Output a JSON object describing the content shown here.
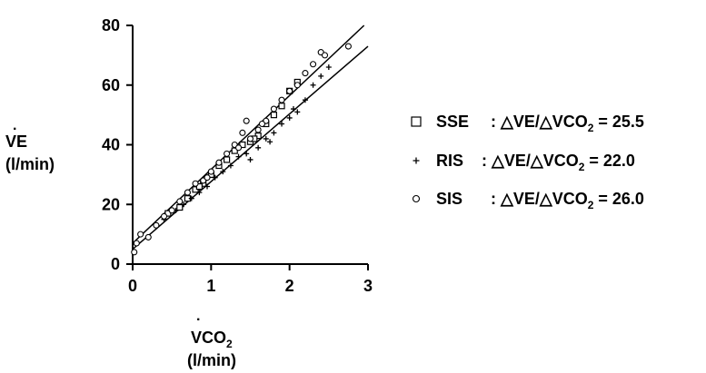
{
  "chart_data": {
    "type": "scatter",
    "x": [
      0,
      3
    ],
    "xlim": [
      0,
      3
    ],
    "ylim": [
      0,
      80
    ],
    "xticks": [
      "0",
      "1",
      "2",
      "3"
    ],
    "yticks": [
      "0",
      "20",
      "40",
      "60",
      "80"
    ],
    "xlabel": {
      "main": "VCO",
      "sub": "2",
      "unit": "(l/min)"
    },
    "ylabel": {
      "main": "VE",
      "unit": "(l/min)"
    },
    "grid": false,
    "legend_position": "right",
    "series": [
      {
        "name": "SSE",
        "marker": "square",
        "ratio_label": ": △VE/△VCO",
        "ratio_sub": "2",
        "ratio_value": "= 25.5",
        "points": [
          [
            0.45,
            17
          ],
          [
            0.6,
            19
          ],
          [
            0.7,
            22
          ],
          [
            0.8,
            25
          ],
          [
            0.9,
            27
          ],
          [
            1.0,
            30
          ],
          [
            1.1,
            33
          ],
          [
            1.2,
            35
          ],
          [
            1.3,
            38
          ],
          [
            1.4,
            40
          ],
          [
            1.5,
            41
          ],
          [
            1.6,
            43
          ],
          [
            1.7,
            47
          ],
          [
            1.8,
            50
          ],
          [
            1.9,
            53
          ],
          [
            2.0,
            58
          ],
          [
            2.1,
            61
          ],
          [
            0.85,
            26
          ],
          [
            1.55,
            42
          ]
        ]
      },
      {
        "name": "RIS",
        "marker": "plus",
        "ratio_label": ": △VE/△VCO",
        "ratio_sub": "2",
        "ratio_value": "= 22.0",
        "points": [
          [
            0.4,
            15
          ],
          [
            0.55,
            18
          ],
          [
            0.65,
            20
          ],
          [
            0.75,
            22
          ],
          [
            0.85,
            24
          ],
          [
            0.95,
            26
          ],
          [
            1.05,
            29
          ],
          [
            1.15,
            31
          ],
          [
            1.25,
            33
          ],
          [
            1.35,
            36
          ],
          [
            1.45,
            37
          ],
          [
            1.6,
            39
          ],
          [
            1.7,
            42
          ],
          [
            1.8,
            44
          ],
          [
            1.9,
            47
          ],
          [
            2.0,
            49
          ],
          [
            2.1,
            51
          ],
          [
            2.2,
            55
          ],
          [
            2.3,
            60
          ],
          [
            2.4,
            63
          ],
          [
            2.5,
            66
          ],
          [
            1.5,
            35
          ],
          [
            1.75,
            41
          ],
          [
            2.05,
            52
          ]
        ]
      },
      {
        "name": "SIS",
        "marker": "circle",
        "ratio_label": ": △VE/△VCO",
        "ratio_sub": "2",
        "ratio_value": "= 26.0",
        "points": [
          [
            0.02,
            4
          ],
          [
            0.05,
            7
          ],
          [
            0.1,
            10
          ],
          [
            0.2,
            9
          ],
          [
            0.3,
            13
          ],
          [
            0.4,
            16
          ],
          [
            0.5,
            18
          ],
          [
            0.6,
            21
          ],
          [
            0.7,
            24
          ],
          [
            0.8,
            27
          ],
          [
            0.9,
            28
          ],
          [
            1.0,
            31
          ],
          [
            1.1,
            34
          ],
          [
            1.2,
            37
          ],
          [
            1.3,
            40
          ],
          [
            1.4,
            44
          ],
          [
            1.45,
            48
          ],
          [
            1.5,
            42
          ],
          [
            1.6,
            45
          ],
          [
            1.7,
            48
          ],
          [
            1.8,
            52
          ],
          [
            1.9,
            55
          ],
          [
            2.0,
            58
          ],
          [
            2.1,
            60
          ],
          [
            2.2,
            64
          ],
          [
            2.3,
            67
          ],
          [
            2.4,
            71
          ],
          [
            2.45,
            70
          ],
          [
            2.75,
            73
          ],
          [
            1.35,
            39
          ],
          [
            1.65,
            47
          ],
          [
            0.95,
            29
          ]
        ]
      }
    ],
    "fit_lines": [
      {
        "x": [
          0,
          2.95
        ],
        "y": [
          7,
          80
        ]
      },
      {
        "x": [
          0,
          3
        ],
        "y": [
          5,
          73
        ]
      }
    ]
  }
}
